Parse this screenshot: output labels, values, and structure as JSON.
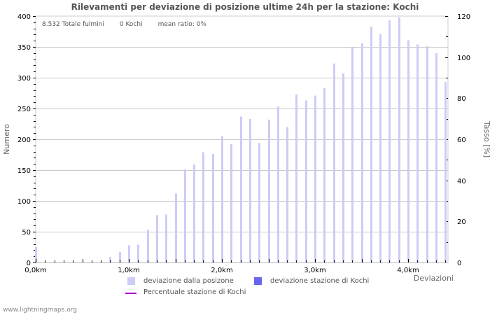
{
  "header": {
    "title": "Rilevamenti per deviazione di posizione ultime 24h per la stazione: Kochi"
  },
  "info": {
    "total": "8.532 Totale fulmini",
    "station": "0 Kochi",
    "ratio": "mean ratio: 0%"
  },
  "legend": {
    "items": [
      {
        "label": "deviazione dalla posizone",
        "color": "#ccccf8"
      },
      {
        "label": "deviazione stazione di Kochi",
        "color": "#6666ee"
      },
      {
        "label": "Percentuale stazione di Kochi",
        "color": "#aa00cc"
      }
    ]
  },
  "footer": {
    "credit": "www.lightningmaps.org"
  },
  "chart_data": {
    "type": "bar",
    "title": "Rilevamenti per deviazione di posizione ultime 24h per la stazione: Kochi",
    "xlabel": "Deviazioni",
    "ylabel": "Numero",
    "y2label": "Tasso [%]",
    "ylim": [
      0,
      400
    ],
    "y2lim": [
      0,
      120
    ],
    "yticks": [
      0,
      50,
      100,
      150,
      200,
      250,
      300,
      350,
      400
    ],
    "y2ticks": [
      0,
      20,
      40,
      60,
      80,
      100,
      120
    ],
    "xticks": [
      "0,0km",
      "1,0km",
      "2,0km",
      "3,0km",
      "4,0km"
    ],
    "grid": true,
    "x_km": [
      0.0,
      0.1,
      0.2,
      0.3,
      0.4,
      0.5,
      0.6,
      0.7,
      0.8,
      0.9,
      1.0,
      1.1,
      1.2,
      1.3,
      1.4,
      1.5,
      1.6,
      1.7,
      1.8,
      1.9,
      2.0,
      2.1,
      2.2,
      2.3,
      2.4,
      2.5,
      2.6,
      2.7,
      2.8,
      2.9,
      3.0,
      3.1,
      3.2,
      3.3,
      3.4,
      3.5,
      3.6,
      3.7,
      3.8,
      3.9,
      4.0,
      4.1,
      4.2,
      4.3,
      4.4
    ],
    "series": [
      {
        "name": "deviazione dalla posizone",
        "color": "#ccccf8",
        "values": [
          25,
          0,
          0,
          0,
          0,
          1,
          0,
          1,
          9,
          17,
          28,
          29,
          53,
          77,
          78,
          112,
          151,
          159,
          179,
          176,
          205,
          192,
          237,
          233,
          194,
          232,
          253,
          220,
          273,
          263,
          271,
          283,
          323,
          307,
          349,
          356,
          383,
          371,
          393,
          398,
          361,
          354,
          351,
          340,
          293
        ]
      },
      {
        "name": "deviazione stazione di Kochi",
        "color": "#6666ee",
        "values": [
          0,
          0,
          0,
          0,
          0,
          0,
          0,
          0,
          0,
          0,
          0,
          0,
          0,
          0,
          0,
          0,
          0,
          0,
          0,
          0,
          0,
          0,
          0,
          0,
          0,
          0,
          0,
          0,
          0,
          0,
          0,
          0,
          0,
          0,
          0,
          0,
          0,
          0,
          0,
          0,
          0,
          0,
          0,
          0,
          0
        ]
      },
      {
        "name": "Percentuale stazione di Kochi",
        "color": "#aa00cc",
        "axis": "right",
        "values": [
          0,
          0,
          0,
          0,
          0,
          0,
          0,
          0,
          0,
          0,
          0,
          0,
          0,
          0,
          0,
          0,
          0,
          0,
          0,
          0,
          0,
          0,
          0,
          0,
          0,
          0,
          0,
          0,
          0,
          0,
          0,
          0,
          0,
          0,
          0,
          0,
          0,
          0,
          0,
          0,
          0,
          0,
          0,
          0,
          0
        ]
      }
    ]
  }
}
